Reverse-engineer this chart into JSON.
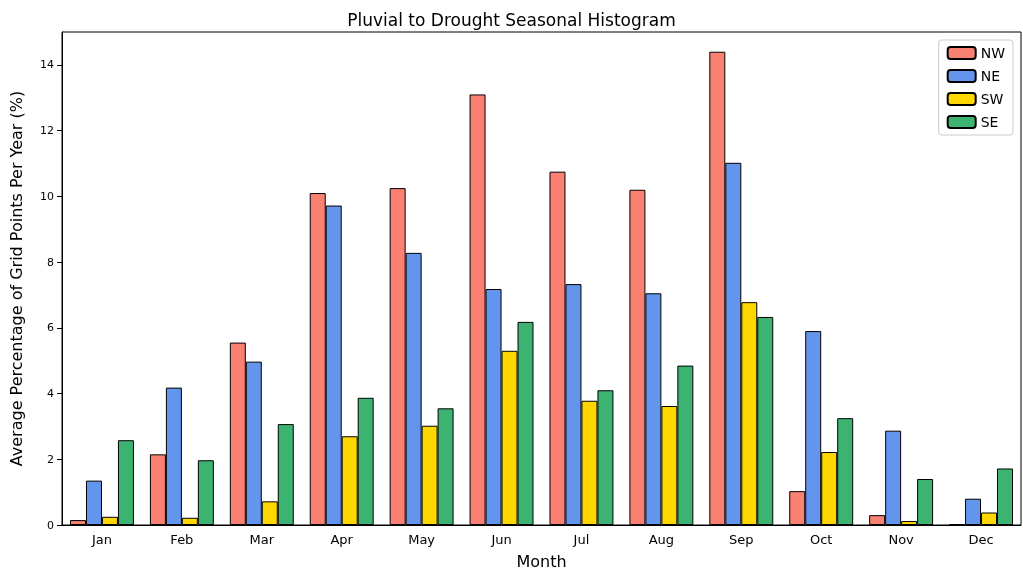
{
  "chart_data": {
    "type": "bar",
    "title": "Pluvial to Drought Seasonal Histogram",
    "xlabel": "Month",
    "ylabel": "Average Percentage of Grid Points Per Year (%)",
    "categories": [
      "Jan",
      "Feb",
      "Mar",
      "Apr",
      "May",
      "Jun",
      "Jul",
      "Aug",
      "Sep",
      "Oct",
      "Nov",
      "Dec"
    ],
    "series": [
      {
        "name": "NW",
        "color": "#fa8072",
        "values": [
          0.15,
          2.15,
          5.55,
          10.1,
          10.25,
          13.1,
          10.75,
          10.2,
          14.4,
          1.03,
          0.3,
          0.02
        ]
      },
      {
        "name": "NE",
        "color": "#6495ed",
        "values": [
          1.35,
          4.18,
          4.97,
          9.72,
          8.28,
          7.18,
          7.33,
          7.05,
          11.02,
          5.9,
          2.87,
          0.8
        ]
      },
      {
        "name": "SW",
        "color": "#ffd700",
        "values": [
          0.25,
          0.22,
          0.72,
          2.7,
          3.02,
          5.3,
          3.78,
          3.62,
          6.78,
          2.22,
          0.12,
          0.38
        ]
      },
      {
        "name": "SE",
        "color": "#3cb371",
        "values": [
          2.58,
          1.97,
          3.07,
          3.87,
          3.55,
          6.18,
          4.1,
          4.85,
          6.33,
          3.25,
          1.4,
          1.72
        ]
      }
    ],
    "ylim": [
      0,
      15
    ],
    "yticks": [
      0,
      2,
      4,
      6,
      8,
      10,
      12,
      14
    ],
    "grid": false,
    "legend": "top right"
  }
}
